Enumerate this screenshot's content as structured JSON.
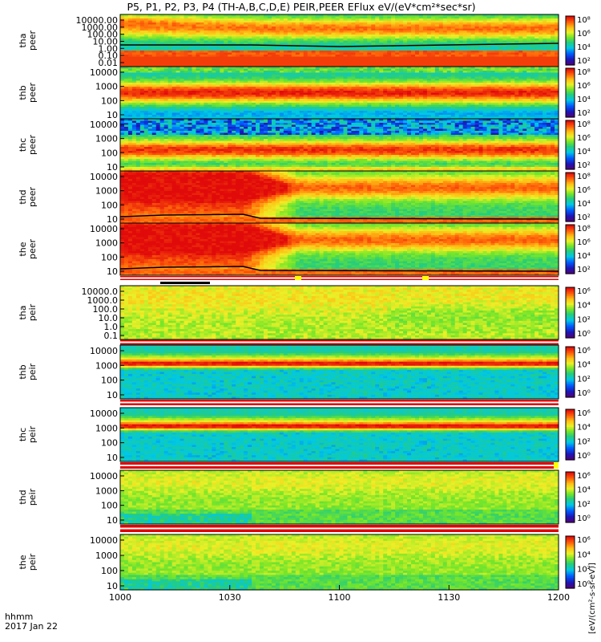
{
  "chart_data": {
    "type": "heatmap",
    "title": "P5, P1, P2, P3, P4 (TH-A,B,C,D,E) PEIR,PEER EFlux eV/(eV*cm²*sec*sr)",
    "x_label_line1": "hhmm",
    "x_label_line2": "2017 Jan 22",
    "x_ticks": [
      "1000",
      "1030",
      "1100",
      "1130",
      "1200"
    ],
    "colorbar_units": "[eV/(cm²-s-sr-eV)]",
    "panels": [
      {
        "id": "tha-peer",
        "label1": "tha",
        "label2": "peer",
        "y_ticks": [
          "10000.00",
          "1000.00",
          "100.00",
          "10.00",
          "1.00",
          "0.10",
          "0.01"
        ],
        "cb_ticks": [
          "10⁸",
          "10⁶",
          "10⁴",
          "10²"
        ],
        "pattern": "thapeer",
        "mark_minute": 85
      },
      {
        "id": "thb-peer",
        "label1": "thb",
        "label2": "peer",
        "y_ticks": [
          "10000",
          "1000",
          "100",
          "10"
        ],
        "cb_ticks": [
          "10⁸",
          "10⁶",
          "10⁴",
          "10²"
        ],
        "pattern": "peerB"
      },
      {
        "id": "thc-peer",
        "label1": "thc",
        "label2": "peer",
        "y_ticks": [
          "10000",
          "1000",
          "100",
          "10"
        ],
        "cb_ticks": [
          "10⁸",
          "10⁶",
          "10⁴",
          "10²"
        ],
        "pattern": "peerC"
      },
      {
        "id": "thd-peer",
        "label1": "thd",
        "label2": "peer",
        "y_ticks": [
          "10000",
          "1000",
          "100",
          "10"
        ],
        "cb_ticks": [
          "10⁸",
          "10⁶",
          "10⁴",
          "10²"
        ],
        "pattern": "peerDE"
      },
      {
        "id": "the-peer",
        "label1": "the",
        "label2": "peer",
        "y_ticks": [
          "10000",
          "1000",
          "100",
          "10"
        ],
        "cb_ticks": [
          "10⁸",
          "10⁶",
          "10⁴",
          "10²"
        ],
        "pattern": "peerDE"
      },
      {
        "id": "tha-peir",
        "label1": "tha",
        "label2": "peir",
        "y_ticks": [
          "10000.0",
          "1000.0",
          "100.0",
          "10.0",
          "1.0",
          "0.1"
        ],
        "cb_ticks": [
          "10⁶",
          "10⁴",
          "10²",
          "10⁰"
        ],
        "pattern": "peirA"
      },
      {
        "id": "thb-peir",
        "label1": "thb",
        "label2": "peir",
        "y_ticks": [
          "10000",
          "1000",
          "100",
          "10"
        ],
        "cb_ticks": [
          "10⁶",
          "10⁴",
          "10²",
          "10⁰"
        ],
        "pattern": "peirBC"
      },
      {
        "id": "thc-peir",
        "label1": "thc",
        "label2": "peir",
        "y_ticks": [
          "10000",
          "1000",
          "100",
          "10"
        ],
        "cb_ticks": [
          "10⁶",
          "10⁴",
          "10²",
          "10⁰"
        ],
        "pattern": "peirBC"
      },
      {
        "id": "thd-peir",
        "label1": "thd",
        "label2": "peir",
        "y_ticks": [
          "10000",
          "1000",
          "100",
          "10"
        ],
        "cb_ticks": [
          "10⁶",
          "10⁴",
          "10²",
          "10⁰"
        ],
        "pattern": "peirDE"
      },
      {
        "id": "the-peir",
        "label1": "the",
        "label2": "peir",
        "y_ticks": [
          "10000",
          "1000",
          "100",
          "10"
        ],
        "cb_ticks": [
          "10⁶",
          "10⁴",
          "10²",
          "10⁰"
        ],
        "pattern": "peirDE"
      }
    ]
  }
}
